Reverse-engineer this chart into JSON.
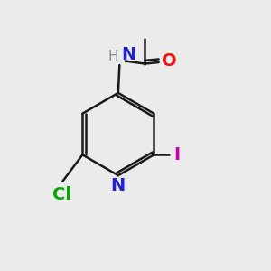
{
  "background_color": "#ebebeb",
  "bond_color": "#1a1a1a",
  "atom_colors": {
    "N_ring": "#2222cc",
    "N_amide": "#2222cc",
    "O": "#ee1111",
    "Cl": "#00aa00",
    "I": "#cc00aa",
    "H": "#888888"
  },
  "font_size": 14,
  "font_size_h": 11,
  "lw": 1.8
}
